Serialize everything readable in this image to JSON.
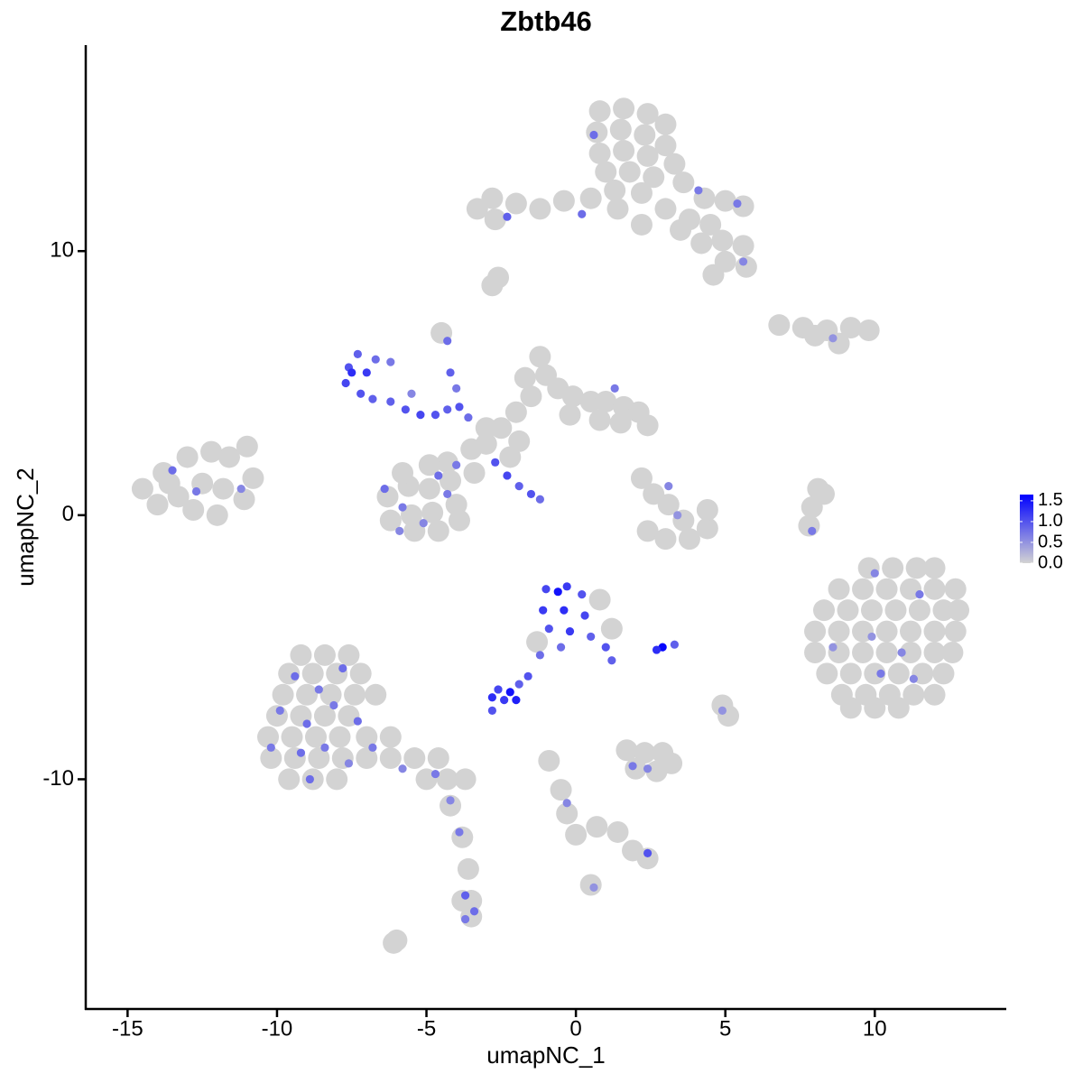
{
  "chart_data": {
    "type": "scatter",
    "title": "Zbtb46",
    "xlabel": "umapNC_1",
    "ylabel": "umapNC_2",
    "xlim": [
      -16.4,
      14.4
    ],
    "ylim": [
      -18.7,
      17.8
    ],
    "xticks": [
      -15,
      -10,
      -5,
      0,
      5,
      10
    ],
    "yticks": [
      -10,
      0,
      10
    ],
    "color_scale": {
      "low": "#d3d3d3",
      "high": "#0000ff",
      "lim": [
        0,
        1.65
      ],
      "ticks": [
        {
          "value": 0,
          "label": "0.0"
        },
        0.5,
        {
          "value": 1,
          "label": "1.0"
        },
        1.5
      ]
    },
    "x": [
      0.8,
      1.6,
      2.4,
      3.0,
      0.7,
      1.5,
      2.3,
      3.0,
      0.8,
      1.6,
      2.4,
      3.3,
      1.0,
      1.8,
      2.6,
      3.6,
      1.3,
      2.2,
      4.3,
      5.0,
      5.6,
      3.0,
      1.4,
      0.5,
      -0.4,
      -1.2,
      -2.0,
      -2.8,
      -3.3,
      -2.7,
      3.8,
      4.5,
      4.2,
      4.9,
      5.6,
      5.0,
      5.7,
      4.6,
      3.5,
      2.2,
      -2.8,
      -2.6,
      6.8,
      7.6,
      8.4,
      9.2,
      9.8,
      8.8,
      8.0,
      -14.5,
      -13.8,
      -13.0,
      -12.2,
      -11.6,
      -11.0,
      -14.0,
      -13.3,
      -12.5,
      -11.8,
      -11.1,
      -12.8,
      -12.0,
      -10.8,
      -13.6,
      -1.2,
      -1.0,
      -0.6,
      -0.1,
      0.5,
      1.0,
      1.6,
      2.1,
      2.4,
      1.5,
      0.8,
      -0.2,
      -1.7,
      -1.5,
      -2.0,
      -2.5,
      -3.0,
      -3.5,
      -4.3,
      -3.4,
      -3.0,
      -4.5,
      -1.9,
      -2.2,
      -6.3,
      -5.6,
      -4.9,
      -4.2,
      -6.2,
      -5.5,
      -4.8,
      -4.0,
      -5.4,
      -4.6,
      -3.9,
      -5.8,
      -4.9,
      2.2,
      2.6,
      3.1,
      3.6,
      2.4,
      3.0,
      3.8,
      4.4,
      4.4,
      8.1,
      7.9,
      7.8,
      8.3,
      9.8,
      10.6,
      11.4,
      12.0,
      8.8,
      9.6,
      10.4,
      11.2,
      12.0,
      12.7,
      8.3,
      9.1,
      9.9,
      10.7,
      11.5,
      12.3,
      12.8,
      8.0,
      8.8,
      9.6,
      10.4,
      11.2,
      12.0,
      12.7,
      8.0,
      8.8,
      9.6,
      10.4,
      11.2,
      12.0,
      12.6,
      8.4,
      9.2,
      10.0,
      10.8,
      11.6,
      12.3,
      8.9,
      9.7,
      10.5,
      11.3,
      12.0,
      9.2,
      10.0,
      10.8,
      0.8,
      1.2,
      -1.3,
      -9.2,
      -8.4,
      -7.6,
      -9.6,
      -8.8,
      -8.0,
      -7.2,
      -9.8,
      -9.0,
      -8.2,
      -7.4,
      -6.7,
      -10.0,
      -9.2,
      -8.4,
      -7.6,
      -10.3,
      -9.5,
      -8.7,
      -7.9,
      -7.0,
      -6.2,
      -10.2,
      -9.4,
      -8.6,
      -7.8,
      -7.0,
      -6.2,
      -5.4,
      -4.6,
      -9.6,
      -8.8,
      -8.0,
      -5.0,
      -4.3,
      -3.7,
      -4.2,
      -3.8,
      -3.6,
      -3.5,
      -3.8,
      -3.5,
      1.7,
      2.3,
      2.9,
      3.2,
      2.0,
      2.7,
      -0.9,
      -0.5,
      -0.3,
      0.0,
      0.7,
      1.4,
      1.9,
      2.4,
      4.9,
      5.1,
      -6.0,
      -6.1,
      0.5,
      0.6,
      -2.3,
      4.1,
      0.2,
      5.4,
      5.6,
      8.6,
      -13.5,
      -12.7,
      -11.2,
      -7.6,
      -7.3,
      -7.7,
      -7.2,
      -6.8,
      -6.7,
      -6.2,
      -6.2,
      -5.7,
      -5.2,
      -4.7,
      -4.3,
      -3.9,
      -4.3,
      -4.2,
      -4.0,
      -5.5,
      -7.0,
      -7.5,
      -2.7,
      -2.3,
      -1.9,
      -1.5,
      -1.2,
      1.3,
      -3.6,
      -6.4,
      -5.8,
      -5.1,
      -4.3,
      -4.6,
      -5.9,
      -4.0,
      3.1,
      3.4,
      7.9,
      10.0,
      11.5,
      9.9,
      10.9,
      10.2,
      11.3,
      8.6,
      -1.0,
      -0.3,
      0.2,
      -1.1,
      -0.4,
      0.3,
      -0.9,
      -0.2,
      0.5,
      1.0,
      1.2,
      -0.5,
      -0.6,
      -1.2,
      -1.6,
      -1.9,
      -2.8,
      -2.4,
      -2.0,
      -2.6,
      -2.2,
      -2.8,
      2.9,
      2.7,
      3.3,
      -9.4,
      -8.6,
      -7.8,
      -9.9,
      -9.0,
      -8.1,
      -7.3,
      -10.2,
      -9.2,
      -8.4,
      -7.6,
      -6.8,
      -8.9,
      -5.8,
      -4.7,
      -4.2,
      -3.9,
      -3.7,
      -3.4,
      -3.7,
      2.4,
      1.9,
      -0.3,
      2.4,
      4.9,
      0.6
    ],
    "y": [
      15.3,
      15.4,
      15.2,
      14.8,
      14.5,
      14.6,
      14.4,
      14.0,
      13.7,
      13.8,
      13.6,
      13.3,
      13.0,
      13.0,
      12.8,
      12.6,
      12.3,
      12.2,
      12.0,
      11.9,
      11.7,
      11.6,
      11.6,
      12.0,
      11.9,
      11.6,
      11.8,
      12.0,
      11.6,
      11.2,
      11.2,
      11.0,
      10.3,
      10.4,
      10.2,
      9.6,
      9.4,
      9.1,
      10.8,
      11.0,
      8.7,
      9.0,
      7.2,
      7.1,
      7.0,
      7.1,
      7.0,
      6.5,
      6.8,
      1.0,
      1.6,
      2.2,
      2.4,
      2.2,
      2.6,
      0.4,
      0.7,
      1.2,
      1.0,
      0.6,
      0.2,
      0.0,
      1.4,
      1.2,
      6.0,
      5.3,
      4.8,
      4.5,
      4.3,
      4.3,
      4.1,
      3.9,
      3.4,
      3.5,
      3.6,
      3.8,
      5.2,
      4.5,
      3.9,
      3.3,
      2.7,
      2.5,
      2.0,
      1.6,
      3.3,
      6.9,
      2.8,
      2.2,
      0.7,
      1.1,
      1.0,
      1.3,
      -0.2,
      0.0,
      0.1,
      0.4,
      -0.6,
      -0.6,
      -0.2,
      1.6,
      1.9,
      1.4,
      0.8,
      0.4,
      -0.2,
      -0.6,
      -0.9,
      -0.9,
      -0.5,
      0.2,
      1.0,
      0.3,
      -0.4,
      0.8,
      -2.0,
      -2.0,
      -2.0,
      -2.0,
      -2.8,
      -2.8,
      -2.8,
      -2.8,
      -2.8,
      -2.8,
      -3.6,
      -3.6,
      -3.6,
      -3.6,
      -3.6,
      -3.6,
      -3.6,
      -4.4,
      -4.4,
      -4.4,
      -4.4,
      -4.4,
      -4.4,
      -4.4,
      -5.2,
      -5.2,
      -5.2,
      -5.2,
      -5.2,
      -5.2,
      -5.2,
      -6.0,
      -6.0,
      -6.0,
      -6.0,
      -6.0,
      -6.0,
      -6.8,
      -6.8,
      -6.8,
      -6.8,
      -6.8,
      -7.3,
      -7.3,
      -7.3,
      -3.2,
      -4.3,
      -4.8,
      -5.3,
      -5.3,
      -5.3,
      -6.0,
      -6.0,
      -6.0,
      -6.0,
      -6.8,
      -6.8,
      -6.8,
      -6.8,
      -6.8,
      -7.6,
      -7.6,
      -7.6,
      -7.6,
      -8.4,
      -8.4,
      -8.4,
      -8.4,
      -8.4,
      -8.4,
      -9.2,
      -9.2,
      -9.2,
      -9.2,
      -9.2,
      -9.2,
      -9.2,
      -9.2,
      -10.0,
      -10.0,
      -10.0,
      -10.0,
      -10.0,
      -10.0,
      -11.0,
      -12.2,
      -13.4,
      -14.6,
      -14.6,
      -15.2,
      -8.9,
      -9.0,
      -9.0,
      -9.4,
      -9.6,
      -9.7,
      -9.3,
      -10.4,
      -11.3,
      -12.1,
      -11.8,
      -12.0,
      -12.7,
      -13.0,
      -7.2,
      -7.6,
      -16.1,
      -16.2,
      -14.0,
      14.4,
      11.3,
      12.3,
      11.4,
      11.8,
      9.6,
      6.7,
      1.7,
      0.9,
      1.0,
      5.6,
      6.1,
      5.0,
      4.6,
      4.4,
      5.9,
      5.8,
      4.3,
      4.0,
      3.8,
      3.8,
      4.0,
      4.1,
      6.6,
      5.4,
      4.8,
      4.6,
      5.4,
      5.4,
      2.0,
      1.5,
      1.1,
      0.8,
      0.6,
      4.8,
      3.7,
      1.0,
      0.3,
      -0.3,
      0.8,
      1.5,
      -0.6,
      1.9,
      1.1,
      0.0,
      -0.6,
      -2.2,
      -3.0,
      -4.6,
      -5.2,
      -6.0,
      -6.2,
      -5.0,
      -2.8,
      -2.7,
      -3.0,
      -3.6,
      -3.6,
      -3.8,
      -4.3,
      -4.4,
      -4.6,
      -5.0,
      -5.5,
      -5.0,
      -2.9,
      -5.3,
      -6.1,
      -6.4,
      -6.9,
      -7.0,
      -7.0,
      -6.6,
      -6.7,
      -7.4,
      -5.0,
      -5.1,
      -4.9,
      -6.1,
      -6.6,
      -5.8,
      -7.4,
      -7.9,
      -7.2,
      -7.8,
      -8.8,
      -9.0,
      -8.8,
      -9.4,
      -8.8,
      -10.0,
      -9.6,
      -9.8,
      -10.8,
      -12.0,
      -14.4,
      -15.0,
      -15.3,
      -9.6,
      -9.5,
      -10.9,
      -12.8,
      -7.4,
      -14.1
    ],
    "values": [
      0,
      0,
      0,
      0,
      0,
      0,
      0,
      0,
      0,
      0,
      0,
      0,
      0,
      0,
      0,
      0,
      0,
      0,
      0,
      0,
      0,
      0,
      0,
      0,
      0,
      0,
      0,
      0,
      0,
      0,
      0,
      0,
      0,
      0,
      0,
      0,
      0,
      0,
      0,
      0,
      0,
      0,
      0,
      0,
      0,
      0,
      0,
      0,
      0,
      0,
      0,
      0,
      0,
      0,
      0,
      0,
      0,
      0,
      0,
      0,
      0,
      0,
      0,
      0,
      0,
      0,
      0,
      0,
      0,
      0,
      0,
      0,
      0,
      0,
      0,
      0,
      0,
      0,
      0,
      0,
      0,
      0,
      0,
      0,
      0,
      0,
      0,
      0,
      0,
      0,
      0,
      0,
      0,
      0,
      0,
      0,
      0,
      0,
      0,
      0,
      0,
      0,
      0,
      0,
      0,
      0,
      0,
      0,
      0,
      0,
      0,
      0,
      0,
      0,
      0,
      0,
      0,
      0,
      0,
      0,
      0,
      0,
      0,
      0,
      0,
      0,
      0,
      0,
      0,
      0,
      0,
      0,
      0,
      0,
      0,
      0,
      0,
      0,
      0,
      0,
      0,
      0,
      0,
      0,
      0,
      0,
      0,
      0,
      0,
      0,
      0,
      0,
      0,
      0,
      0,
      0,
      0,
      0,
      0,
      0,
      0,
      0,
      0,
      0,
      0,
      0,
      0,
      0,
      0,
      0,
      0,
      0,
      0,
      0,
      0,
      0,
      0,
      0,
      0,
      0,
      0,
      0,
      0,
      0,
      0,
      0,
      0,
      0,
      0,
      0,
      0,
      0,
      0,
      0,
      0,
      0,
      0,
      0,
      0,
      0,
      0,
      0,
      0,
      0,
      0,
      0,
      0,
      0,
      0,
      0,
      0,
      0,
      0,
      0,
      0,
      0,
      0,
      0,
      0,
      0,
      0,
      0,
      0,
      0.8,
      0.9,
      0.7,
      0.8,
      0.7,
      0.6,
      0.5,
      0.8,
      0.7,
      0.6,
      1.0,
      0.9,
      1.1,
      1.0,
      0.9,
      0.8,
      0.7,
      0.9,
      1.0,
      1.1,
      1.0,
      0.9,
      1.0,
      0.8,
      0.9,
      0.7,
      0.6,
      1.2,
      1.3,
      1.0,
      1.1,
      0.9,
      1.0,
      0.8,
      0.7,
      0.8,
      0.8,
      0.7,
      0.6,
      0.7,
      0.8,
      0.6,
      0.7,
      0.6,
      0.5,
      0.7,
      0.6,
      0.7,
      0.5,
      0.6,
      0.7,
      0.6,
      0.5,
      1.1,
      1.2,
      1.0,
      1.2,
      1.3,
      1.1,
      1.0,
      1.2,
      0.9,
      1.0,
      0.9,
      0.8,
      1.5,
      0.8,
      1.0,
      0.9,
      1.3,
      1.2,
      1.4,
      1.1,
      1.5,
      1.0,
      1.6,
      1.3,
      0.9,
      0.8,
      0.7,
      0.8,
      0.7,
      0.8,
      0.7,
      0.8,
      0.7,
      0.8,
      0.7,
      0.6,
      0.7,
      0.8,
      0.6,
      0.7,
      0.6,
      0.7,
      0.9,
      0.8,
      0.7,
      0.6,
      0.7,
      0.6,
      1.0,
      0.5,
      0.5
    ]
  }
}
